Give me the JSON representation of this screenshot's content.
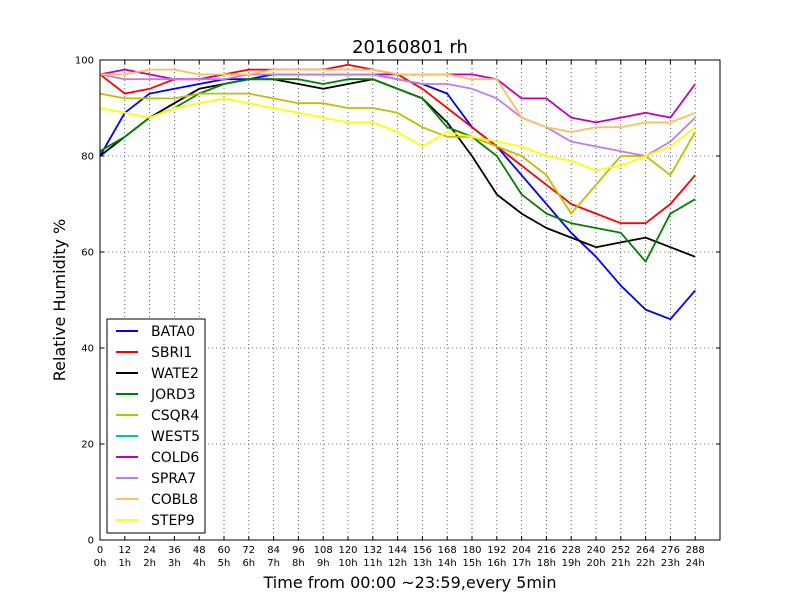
{
  "chart_data": {
    "type": "line",
    "title": "20160801 rh",
    "xlabel": "Time from 00:00 ~23:59,every 5min",
    "ylabel": "Relative Humidity %",
    "xlim": [
      0,
      300
    ],
    "ylim": [
      0,
      100
    ],
    "grid": true,
    "legend_position": "bottom-left",
    "x_ticks": [
      {
        "value": 0,
        "label": "0",
        "sublabel": "0h"
      },
      {
        "value": 12,
        "label": "12",
        "sublabel": "1h"
      },
      {
        "value": 24,
        "label": "24",
        "sublabel": "2h"
      },
      {
        "value": 36,
        "label": "36",
        "sublabel": "3h"
      },
      {
        "value": 48,
        "label": "48",
        "sublabel": "4h"
      },
      {
        "value": 60,
        "label": "60",
        "sublabel": "5h"
      },
      {
        "value": 72,
        "label": "72",
        "sublabel": "6h"
      },
      {
        "value": 84,
        "label": "84",
        "sublabel": "7h"
      },
      {
        "value": 96,
        "label": "96",
        "sublabel": "8h"
      },
      {
        "value": 108,
        "label": "108",
        "sublabel": "9h"
      },
      {
        "value": 120,
        "label": "120",
        "sublabel": "10h"
      },
      {
        "value": 132,
        "label": "132",
        "sublabel": "11h"
      },
      {
        "value": 144,
        "label": "144",
        "sublabel": "12h"
      },
      {
        "value": 156,
        "label": "156",
        "sublabel": "13h"
      },
      {
        "value": 168,
        "label": "168",
        "sublabel": "14h"
      },
      {
        "value": 180,
        "label": "180",
        "sublabel": "15h"
      },
      {
        "value": 192,
        "label": "192",
        "sublabel": "16h"
      },
      {
        "value": 204,
        "label": "204",
        "sublabel": "17h"
      },
      {
        "value": 216,
        "label": "216",
        "sublabel": "18h"
      },
      {
        "value": 228,
        "label": "228",
        "sublabel": "19h"
      },
      {
        "value": 240,
        "label": "240",
        "sublabel": "20h"
      },
      {
        "value": 252,
        "label": "252",
        "sublabel": "21h"
      },
      {
        "value": 264,
        "label": "264",
        "sublabel": "22h"
      },
      {
        "value": 276,
        "label": "276",
        "sublabel": "23h"
      },
      {
        "value": 288,
        "label": "288",
        "sublabel": "24h"
      }
    ],
    "y_ticks": [
      0,
      20,
      40,
      60,
      80,
      100
    ],
    "series": [
      {
        "name": "BATA0",
        "color": "#0000ff",
        "x": [
          0,
          12,
          24,
          36,
          48,
          60,
          72,
          84,
          96,
          108,
          120,
          132,
          144,
          156,
          168,
          180,
          192,
          204,
          216,
          228,
          240,
          252,
          264,
          276,
          288
        ],
        "values": [
          80,
          89,
          93,
          94,
          95,
          96,
          96,
          97,
          97,
          97,
          97,
          97,
          96,
          95,
          93,
          86,
          82,
          76,
          70,
          64,
          59,
          53,
          48,
          46,
          52
        ]
      },
      {
        "name": "SBRI1",
        "color": "#ff0000",
        "x": [
          0,
          12,
          24,
          36,
          48,
          60,
          72,
          84,
          96,
          108,
          120,
          132,
          144,
          156,
          168,
          180,
          192,
          204,
          216,
          228,
          240,
          252,
          264,
          276,
          288
        ],
        "values": [
          97,
          93,
          94,
          96,
          96,
          97,
          98,
          98,
          98,
          98,
          99,
          98,
          97,
          94,
          90,
          86,
          82,
          78,
          74,
          70,
          68,
          66,
          66,
          70,
          76
        ]
      },
      {
        "name": "WATE2",
        "color": "#000000",
        "x": [
          0,
          12,
          24,
          36,
          48,
          60,
          72,
          84,
          96,
          108,
          120,
          132,
          144,
          156,
          168,
          180,
          192,
          204,
          216,
          228,
          240,
          252,
          264,
          276,
          288
        ],
        "values": [
          80,
          84,
          88,
          91,
          94,
          95,
          96,
          96,
          95,
          94,
          95,
          96,
          94,
          92,
          87,
          80,
          72,
          68,
          65,
          63,
          61,
          62,
          63,
          61,
          59
        ]
      },
      {
        "name": "JORD3",
        "color": "#008000",
        "x": [
          0,
          12,
          24,
          36,
          48,
          60,
          72,
          84,
          96,
          108,
          120,
          132,
          144,
          156,
          168,
          180,
          192,
          204,
          216,
          228,
          240,
          252,
          264,
          276,
          288
        ],
        "values": [
          81,
          84,
          88,
          90,
          93,
          95,
          96,
          96,
          96,
          95,
          96,
          96,
          94,
          92,
          86,
          84,
          80,
          72,
          68,
          66,
          65,
          64,
          58,
          68,
          71
        ]
      },
      {
        "name": "CSQR4",
        "color": "#bfbf00",
        "x": [
          0,
          12,
          24,
          36,
          48,
          60,
          72,
          84,
          96,
          108,
          120,
          132,
          144,
          156,
          168,
          180,
          192,
          204,
          216,
          228,
          240,
          252,
          264,
          276,
          288
        ],
        "values": [
          93,
          92,
          92,
          92,
          93,
          93,
          93,
          92,
          91,
          91,
          90,
          90,
          89,
          86,
          84,
          84,
          82,
          80,
          76,
          68,
          74,
          80,
          80,
          76,
          85
        ]
      },
      {
        "name": "WEST5",
        "color": "#00bfbf",
        "x": [],
        "values": []
      },
      {
        "name": "COLD6",
        "color": "#bf00bf",
        "x": [
          0,
          12,
          24,
          36,
          48,
          60,
          72,
          84,
          96,
          108,
          120,
          132,
          144,
          156,
          168,
          180,
          192,
          204,
          216,
          228,
          240,
          252,
          264,
          276,
          288
        ],
        "values": [
          97,
          98,
          97,
          96,
          96,
          97,
          97,
          97,
          97,
          97,
          97,
          97,
          97,
          97,
          97,
          97,
          96,
          92,
          92,
          88,
          87,
          88,
          89,
          88,
          95
        ]
      },
      {
        "name": "SPRA7",
        "color": "#bf7fdf",
        "x": [
          0,
          12,
          24,
          36,
          48,
          60,
          72,
          84,
          96,
          108,
          120,
          132,
          144,
          156,
          168,
          180,
          192,
          204,
          216,
          228,
          240,
          252,
          264,
          276,
          288
        ],
        "values": [
          97,
          96,
          96,
          96,
          96,
          96,
          97,
          97,
          97,
          97,
          97,
          97,
          96,
          95,
          95,
          94,
          92,
          88,
          86,
          83,
          82,
          81,
          80,
          83,
          88
        ]
      },
      {
        "name": "COBL8",
        "color": "#ffbf5f",
        "x": [
          0,
          12,
          24,
          36,
          48,
          60,
          72,
          84,
          96,
          108,
          120,
          132,
          144,
          156,
          168,
          180,
          192,
          204,
          216,
          228,
          240,
          252,
          264,
          276,
          288
        ],
        "values": [
          97,
          97,
          98,
          98,
          97,
          97,
          97,
          98,
          98,
          98,
          98,
          98,
          97,
          97,
          97,
          96,
          96,
          88,
          86,
          85,
          86,
          86,
          87,
          87,
          89
        ]
      },
      {
        "name": "STEP9",
        "color": "#ffff00",
        "x": [
          0,
          12,
          24,
          36,
          48,
          60,
          72,
          84,
          96,
          108,
          120,
          132,
          144,
          156,
          168,
          180,
          192,
          204,
          216,
          228,
          240,
          252,
          264,
          276,
          288
        ],
        "values": [
          90,
          89,
          88,
          90,
          91,
          92,
          91,
          90,
          89,
          88,
          87,
          87,
          85,
          82,
          85,
          84,
          83,
          82,
          80,
          79,
          77,
          78,
          80,
          82,
          86
        ]
      }
    ]
  }
}
